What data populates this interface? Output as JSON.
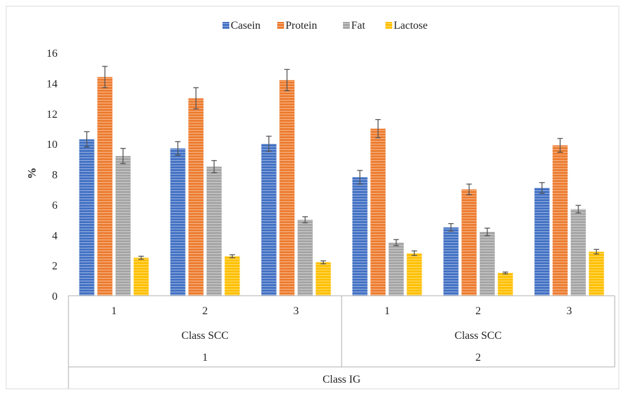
{
  "chart_data": {
    "type": "bar",
    "title": "",
    "ylabel": "%",
    "ylim": [
      0,
      16
    ],
    "yticks": [
      "0",
      "2",
      "4",
      "6",
      "8",
      "10",
      "12",
      "14",
      "16"
    ],
    "legend_position": "top-center",
    "grid": false,
    "categories": [
      "1",
      "2",
      "3",
      "1",
      "2",
      "3"
    ],
    "groups": [
      {
        "label": "Class SCC",
        "outer_label": "1"
      },
      {
        "label": "Class SCC",
        "outer_label": "2"
      }
    ],
    "outer_axis_label": "Class IG",
    "series": [
      {
        "name": "Casein",
        "color": "#4472C4",
        "values": [
          10.3,
          9.7,
          10.0,
          7.8,
          4.5,
          7.1
        ],
        "errors": [
          0.5,
          0.45,
          0.5,
          0.45,
          0.25,
          0.35
        ]
      },
      {
        "name": "Protein",
        "color": "#ED7D31",
        "values": [
          14.4,
          13.0,
          14.2,
          11.0,
          7.0,
          9.9
        ],
        "errors": [
          0.7,
          0.7,
          0.7,
          0.6,
          0.35,
          0.45
        ]
      },
      {
        "name": "Fat",
        "color": "#A5A5A5",
        "values": [
          9.2,
          8.5,
          5.0,
          3.5,
          4.2,
          5.7
        ],
        "errors": [
          0.5,
          0.4,
          0.2,
          0.2,
          0.25,
          0.25
        ]
      },
      {
        "name": "Lactose",
        "color": "#FFC000",
        "values": [
          2.5,
          2.6,
          2.2,
          2.8,
          1.5,
          2.9
        ],
        "errors": [
          0.1,
          0.1,
          0.1,
          0.15,
          0.06,
          0.15
        ]
      }
    ]
  }
}
